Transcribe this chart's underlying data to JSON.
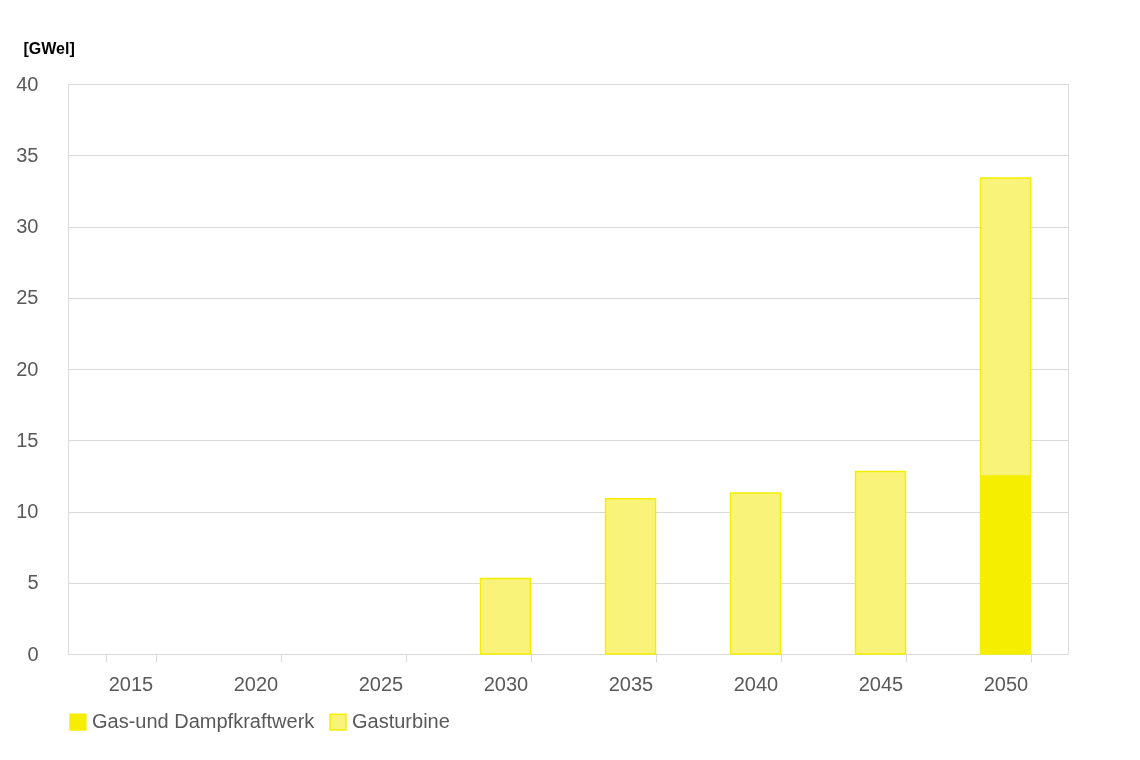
{
  "chart_data": {
    "type": "bar",
    "stacked": true,
    "ylabel": "[GWel]",
    "categories": [
      "2015",
      "2020",
      "2025",
      "2030",
      "2035",
      "2040",
      "2045",
      "2050"
    ],
    "series": [
      {
        "name": "Gas-und Dampfkraftwerk",
        "color": "#f5ee00",
        "values": [
          null,
          null,
          null,
          null,
          null,
          null,
          null,
          12.5
        ]
      },
      {
        "name": "Gasturbine",
        "color": "#f9f37a",
        "values": [
          null,
          null,
          null,
          5.3,
          10.9,
          11.3,
          12.8,
          20.9
        ]
      }
    ],
    "ylim": [
      0,
      40
    ],
    "yticks": [
      0,
      5,
      10,
      15,
      20,
      25,
      30,
      35,
      40
    ],
    "grid": "y",
    "legend": "bottom"
  }
}
